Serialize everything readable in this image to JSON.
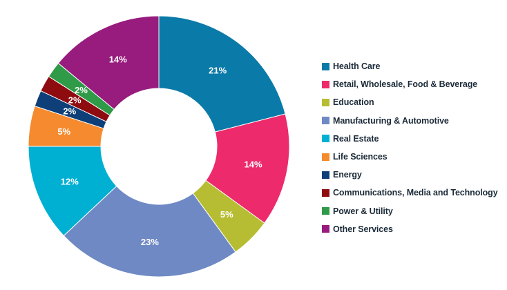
{
  "chart_data": {
    "type": "pie",
    "donut": true,
    "legend_position": "right",
    "slices": [
      {
        "name": "Health Care",
        "value": 21,
        "label": "21%",
        "color": "#0a7aa8"
      },
      {
        "name": "Retail, Wholesale, Food & Beverage",
        "value": 14,
        "label": "14%",
        "color": "#ed2a6b"
      },
      {
        "name": "Education",
        "value": 5,
        "label": "5%",
        "color": "#b6bd32"
      },
      {
        "name": "Manufacturing & Automotive",
        "value": 23,
        "label": "23%",
        "color": "#6f89c4"
      },
      {
        "name": "Real Estate",
        "value": 12,
        "label": "12%",
        "color": "#00b0d3"
      },
      {
        "name": "Life Sciences",
        "value": 5,
        "label": "5%",
        "color": "#f58a2e"
      },
      {
        "name": "Energy",
        "value": 2,
        "label": "2%",
        "color": "#0e3f78"
      },
      {
        "name": "Communications, Media and Technology",
        "value": 2,
        "label": "2%",
        "color": "#8e0b10"
      },
      {
        "name": "Power & Utility",
        "value": 2,
        "label": "2%",
        "color": "#2f9a48"
      },
      {
        "name": "Other Services",
        "value": 14,
        "label": "14%",
        "color": "#971c7e"
      }
    ]
  }
}
